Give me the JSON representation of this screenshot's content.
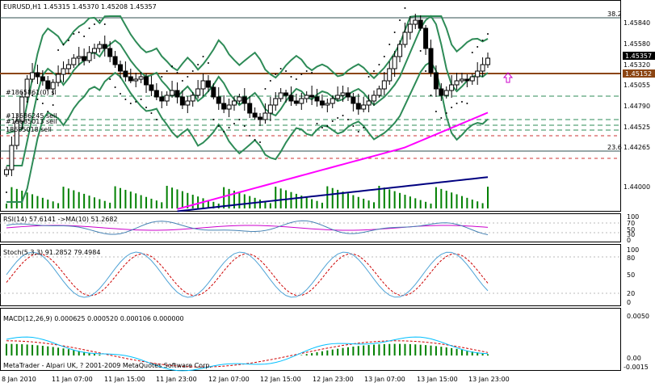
{
  "window": {
    "symbol_header": "EURUSD,H1  1.45315 1.45370 1.45208 1.45357",
    "copyright": "MetaTrader - Alpari UK, ? 2001-2009 MetaQuotes Software Corp.",
    "fibo_top": "38.2",
    "fibo_bottom": "23.6",
    "current_price": "1.45357",
    "ask_price": "1.45152",
    "order_1": "#1865861(0) sl",
    "order_2": "#13686245 sell",
    "order_3": "#18685013 sell",
    "order_4": "18685018 sell"
  },
  "price_axis": [
    "1.45840",
    "1.45580",
    "1.45320",
    "1.45055",
    "1.44790",
    "1.44525",
    "1.44265",
    "1.44000"
  ],
  "time_axis": [
    "8 Jan 2010",
    "11 Jan 07:00",
    "11 Jan 15:00",
    "11 Jan 23:00",
    "12 Jan 07:00",
    "12 Jan 15:00",
    "12 Jan 23:00",
    "13 Jan 07:00",
    "13 Jan 15:00",
    "13 Jan 23:00"
  ],
  "rsi": {
    "title": "RSI(14) 57.6141  ->MA(10) 51.2682",
    "axis": [
      "100",
      "70",
      "50",
      "30",
      "0"
    ]
  },
  "stoch": {
    "title": "Stoch(5,3,3) 91.2852 79.4984",
    "axis": [
      "100",
      "80",
      "50",
      "20",
      "0"
    ]
  },
  "macd": {
    "title": "MACD(12,26,9) 0.000625 0.000520 0.000106 0.000000",
    "axis": [
      "0.0050",
      "0.00",
      "-0.0015"
    ]
  },
  "colors": {
    "candle": "#000000",
    "bollinger": "#2e8b57",
    "ma_magenta": "#ff00ff",
    "ma_navy": "#000080",
    "level_brown": "#8b4513",
    "volume": "#008000",
    "rsi_line": "#4682b4",
    "rsi_ma": "#cc00cc",
    "stoch_main": "#4fa3d6",
    "stoch_signal": "#cc0000",
    "macd_signal": "#cc0000",
    "macd_main": "#00bfff",
    "macd_hist": "#008000"
  }
}
